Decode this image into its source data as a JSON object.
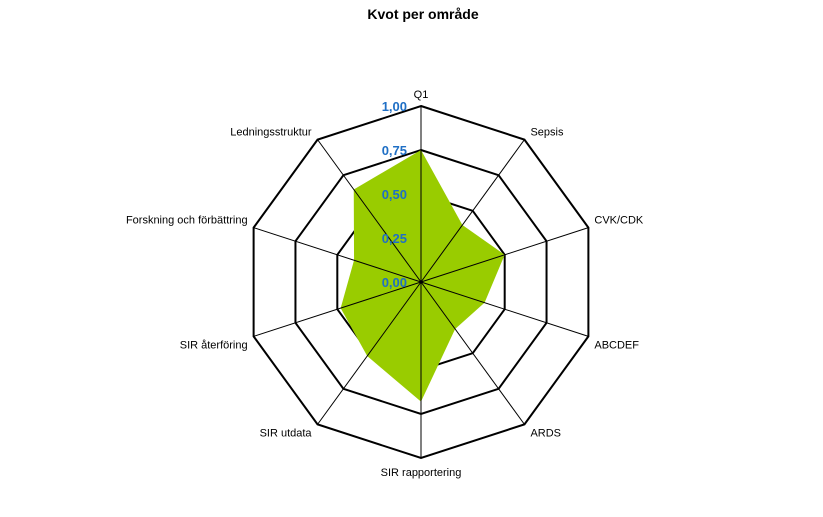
{
  "chart_data": {
    "type": "radar",
    "title": "Kvot per område",
    "categories": [
      "Q1",
      "Sepsis",
      "CVK/CDK",
      "ABCDEF",
      "ARDS",
      "SIR rapportering",
      "SIR utdata",
      "SIR återföring",
      "Forskning och förbättring",
      "Ledningsstruktur"
    ],
    "series": [
      {
        "values": [
          0.75,
          0.4,
          0.5,
          0.38,
          0.33,
          0.68,
          0.52,
          0.48,
          0.4,
          0.65
        ]
      }
    ],
    "rlim": [
      0,
      1
    ],
    "tick_labels": [
      "0,00",
      "0,25",
      "0,50",
      "0,75",
      "1,00"
    ],
    "grid": true
  },
  "colors": {
    "fill": "#99cc00",
    "stroke": "#000000",
    "tick": "#1f6fc5"
  }
}
